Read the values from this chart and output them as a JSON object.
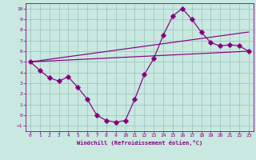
{
  "xlabel": "Windchill (Refroidissement éolien,°C)",
  "bg_color": "#c8e8e0",
  "grid_color": "#a0c8c0",
  "line_color": "#880080",
  "xlim": [
    -0.5,
    23.5
  ],
  "ylim": [
    -1.5,
    10.5
  ],
  "xticks": [
    0,
    1,
    2,
    3,
    4,
    5,
    6,
    7,
    8,
    9,
    10,
    11,
    12,
    13,
    14,
    15,
    16,
    17,
    18,
    19,
    20,
    21,
    22,
    23
  ],
  "yticks": [
    -1,
    0,
    1,
    2,
    3,
    4,
    5,
    6,
    7,
    8,
    9,
    10
  ],
  "curve_main_x": [
    0,
    1,
    2,
    3,
    4,
    5,
    6,
    7,
    8,
    9,
    10,
    11,
    12,
    13,
    14,
    15,
    16,
    17,
    18,
    19,
    20,
    21,
    22,
    23
  ],
  "curve_main_y": [
    5.0,
    4.2,
    3.5,
    3.2,
    3.6,
    2.6,
    1.5,
    0.0,
    -0.5,
    -0.65,
    -0.5,
    1.5,
    3.8,
    5.3,
    7.5,
    9.3,
    10.0,
    9.0,
    7.8,
    6.8,
    6.5,
    6.6,
    6.5,
    6.0
  ],
  "curve_line1_x": [
    0,
    23
  ],
  "curve_line1_y": [
    5.0,
    7.8
  ],
  "curve_line2_x": [
    0,
    23
  ],
  "curve_line2_y": [
    5.0,
    6.0
  ]
}
